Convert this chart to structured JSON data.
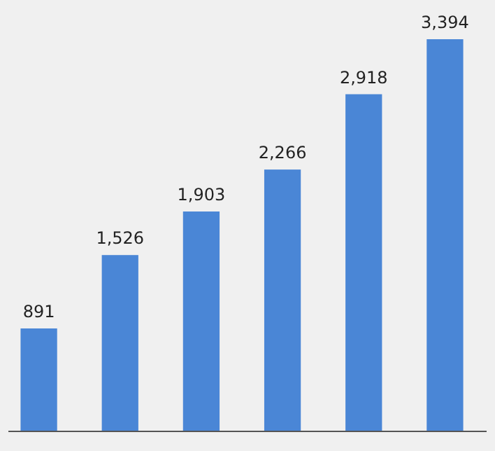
{
  "chart_data": {
    "type": "bar",
    "categories": [
      null,
      null,
      null,
      null,
      null,
      null
    ],
    "values": [
      891,
      1526,
      1903,
      2266,
      2918,
      3394
    ],
    "value_labels": [
      "891",
      "1,526",
      "1,903",
      "2,266",
      "2,918",
      "3,394"
    ],
    "color": "#4a86d6"
  }
}
